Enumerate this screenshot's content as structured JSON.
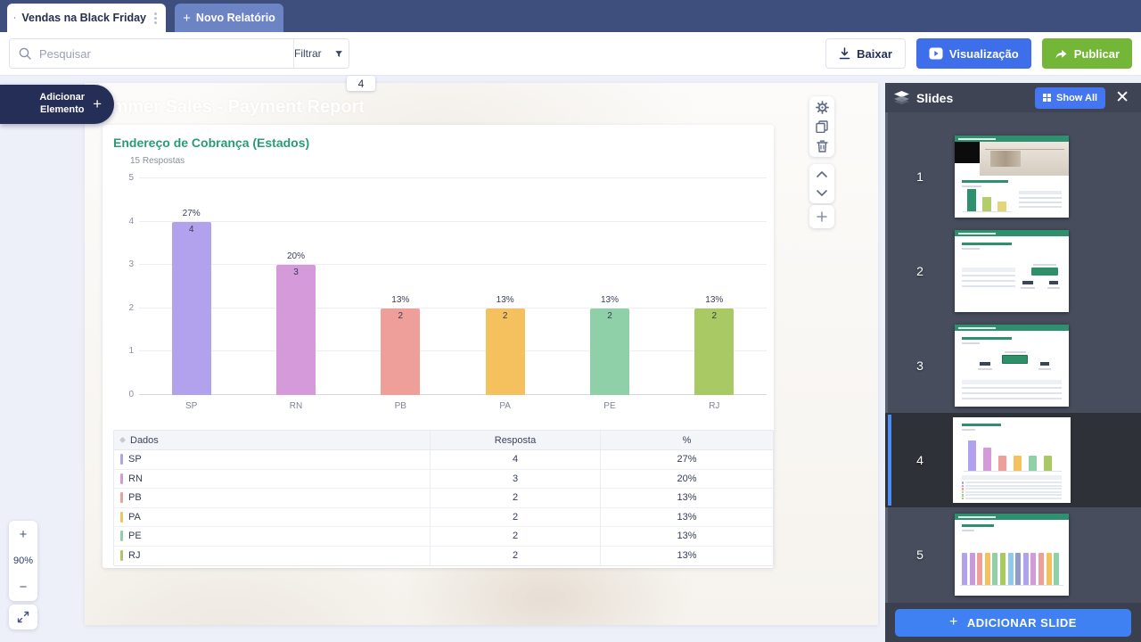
{
  "tabbar": {
    "active_tab": "Vendas na Black Friday",
    "new_report_label": "Novo Relatório",
    "new_report_plus": "+"
  },
  "toolbar": {
    "search_placeholder": "Pesquisar",
    "filter_label": "Filtrar",
    "download_label": "Baixar",
    "preview_label": "Visualização",
    "publish_label": "Publicar"
  },
  "canvas": {
    "page_indicator": "4",
    "slide_title": "Summer Sales - Payment Report",
    "add_element_line1": "Adicionar",
    "add_element_line2": "Elemento",
    "add_element_plus": "+"
  },
  "zoom_controls": {
    "zoom_in": "+",
    "level": "90%",
    "zoom_out": "−"
  },
  "chart_card": {
    "title": "Endereço de Cobrança (Estados)",
    "responses": "15 Respostas"
  },
  "chart_data": {
    "type": "bar",
    "title": "Endereço de Cobrança (Estados)",
    "subtitle": "15 Respostas",
    "categories": [
      "SP",
      "RN",
      "PB",
      "PA",
      "PE",
      "RJ"
    ],
    "values": [
      4,
      3,
      2,
      2,
      2,
      2
    ],
    "percent_labels": [
      "27%",
      "20%",
      "13%",
      "13%",
      "13%",
      "13%"
    ],
    "colors": [
      "#b2a2ee",
      "#d59ad9",
      "#ef9f9a",
      "#f5c05e",
      "#90d0a8",
      "#a9c964"
    ],
    "ylim": [
      0,
      5
    ],
    "yticks": [
      0,
      1,
      2,
      3,
      4,
      5
    ],
    "grid": true,
    "legend": false
  },
  "table": {
    "columns": [
      "Dados",
      "Resposta",
      "%"
    ],
    "rows": [
      {
        "label": "SP",
        "value": "4",
        "pct": "27%",
        "color": "#b2a2ee"
      },
      {
        "label": "RN",
        "value": "3",
        "pct": "20%",
        "color": "#d59ad9"
      },
      {
        "label": "PB",
        "value": "2",
        "pct": "13%",
        "color": "#ef9f9a"
      },
      {
        "label": "PA",
        "value": "2",
        "pct": "13%",
        "color": "#f5c05e"
      },
      {
        "label": "PE",
        "value": "2",
        "pct": "13%",
        "color": "#90d0a8"
      },
      {
        "label": "RJ",
        "value": "2",
        "pct": "13%",
        "color": "#a9c964"
      }
    ]
  },
  "slides_panel": {
    "title": "Slides",
    "show_all_label": "Show All",
    "add_slide_label": "ADICIONAR SLIDE",
    "add_slide_plus": "+",
    "selected_number": "4",
    "accent_blue": "#4b8ef7",
    "thumb_green": "#2f9070",
    "slides": [
      {
        "number": "1",
        "kind": "cover-photo-chart",
        "selected": false
      },
      {
        "number": "2",
        "kind": "table-stats",
        "selected": false
      },
      {
        "number": "3",
        "kind": "stats-table",
        "selected": false
      },
      {
        "number": "4",
        "kind": "colored-bar-chart",
        "selected": true
      },
      {
        "number": "5",
        "kind": "multi-bar-chart",
        "selected": false
      }
    ],
    "slide4_bar_colors": [
      "#b2a2ee",
      "#d59ad9",
      "#ef9f9a",
      "#f5c05e",
      "#90d0a8",
      "#a9c964"
    ],
    "slide5_bar_colors": [
      "#b2a2ee",
      "#c79ade",
      "#ef9f9a",
      "#f5c05e",
      "#90d0a8",
      "#a9c964",
      "#8ec9ee",
      "#8f9bc9",
      "#b2a2ee",
      "#d59ad9",
      "#ef9f9a",
      "#f5c05e",
      "#90d0a8"
    ]
  },
  "colors": {
    "topbar": "#3f4f7d",
    "new_tab": "#6d84c4",
    "preview_blue": "#3f6eea",
    "publish_green": "#74b637",
    "badge_navy": "#252e56",
    "chart_title_green": "#2a9b77",
    "panel_bg": "#474d5d",
    "selected_row_bg": "#2e3138"
  }
}
